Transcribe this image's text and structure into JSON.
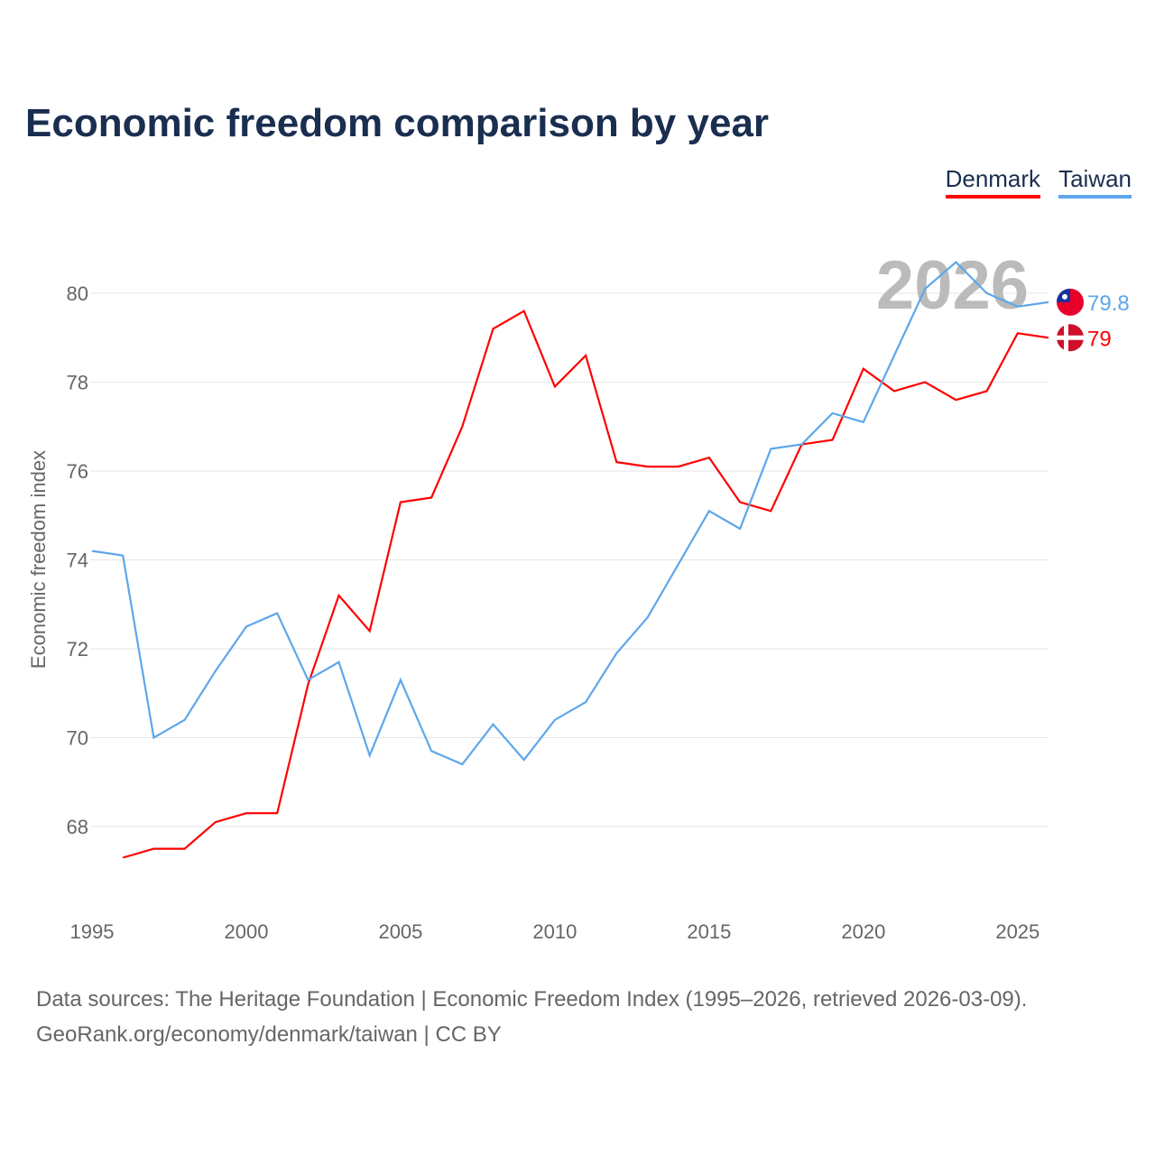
{
  "title": "Economic freedom comparison by year",
  "source_line1": "Data sources: The Heritage Foundation | Economic Freedom Index (1995–2026, retrieved 2026-03-09).",
  "source_line2": "GeoRank.org/economy/denmark/taiwan | CC BY",
  "chart_data": {
    "type": "line",
    "title": "Economic freedom comparison by year",
    "xlabel": "",
    "ylabel": "Economic freedom index",
    "xlim": [
      1995,
      2026
    ],
    "ylim": [
      66,
      82
    ],
    "x_ticks": [
      1995,
      2000,
      2005,
      2010,
      2015,
      2020,
      2025
    ],
    "y_ticks": [
      68,
      70,
      72,
      74,
      76,
      78,
      80
    ],
    "year_label": "2026",
    "legend_position": "top-right",
    "series": [
      {
        "name": "Denmark",
        "color": "#ff0000",
        "end_label": "79",
        "flag": "denmark-flag",
        "x": [
          1996,
          1997,
          1998,
          1999,
          2000,
          2001,
          2002,
          2003,
          2004,
          2005,
          2006,
          2007,
          2008,
          2009,
          2010,
          2011,
          2012,
          2013,
          2014,
          2015,
          2016,
          2017,
          2018,
          2019,
          2020,
          2021,
          2022,
          2023,
          2024,
          2025,
          2026
        ],
        "values": [
          67.3,
          67.5,
          67.5,
          68.1,
          68.3,
          68.3,
          71.2,
          73.2,
          72.4,
          75.3,
          75.4,
          77.0,
          79.2,
          79.6,
          77.9,
          78.6,
          76.2,
          76.1,
          76.1,
          76.3,
          75.3,
          75.1,
          76.6,
          76.7,
          78.3,
          77.8,
          78.0,
          77.6,
          77.8,
          79.1,
          79.0
        ]
      },
      {
        "name": "Taiwan",
        "color": "#5da7ea",
        "end_label": "79.8",
        "flag": "taiwan-flag",
        "x": [
          1995,
          1996,
          1997,
          1998,
          1999,
          2000,
          2001,
          2002,
          2003,
          2004,
          2005,
          2006,
          2007,
          2008,
          2009,
          2010,
          2011,
          2012,
          2013,
          2014,
          2015,
          2016,
          2017,
          2018,
          2019,
          2020,
          2021,
          2022,
          2023,
          2024,
          2025,
          2026
        ],
        "values": [
          74.2,
          74.1,
          70.0,
          70.4,
          71.5,
          72.5,
          72.8,
          71.3,
          71.7,
          69.6,
          71.3,
          69.7,
          69.4,
          70.3,
          69.5,
          70.4,
          70.8,
          71.9,
          72.7,
          73.9,
          75.1,
          74.7,
          76.5,
          76.6,
          77.3,
          77.1,
          78.6,
          80.1,
          80.7,
          80.0,
          79.7,
          79.8
        ]
      }
    ]
  }
}
